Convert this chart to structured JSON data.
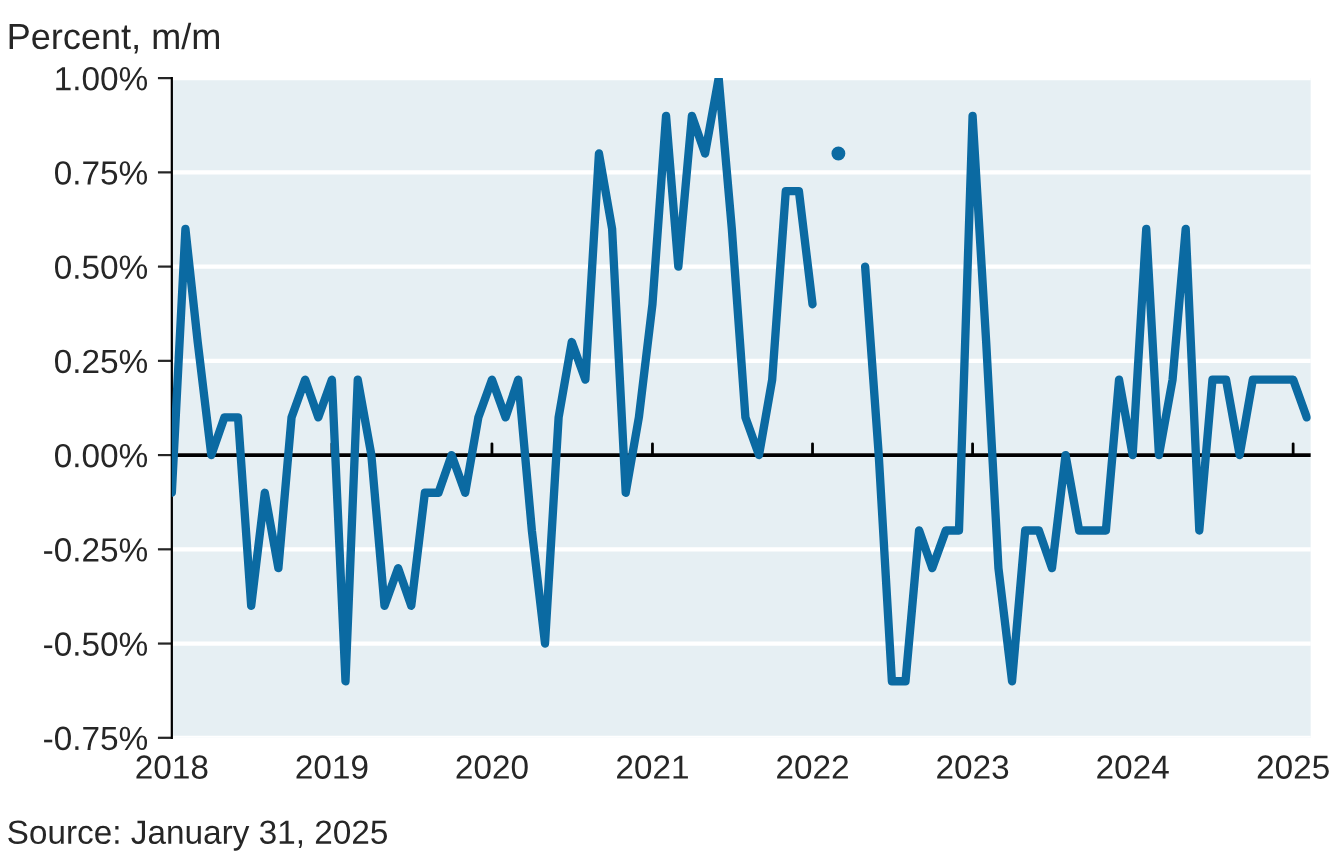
{
  "chart_data": {
    "type": "line",
    "ylabel": "Percent, m/m",
    "annotations": [
      "Source: January 31, 2025"
    ],
    "x": [
      "2018-01",
      "2018-02",
      "2018-03",
      "2018-04",
      "2018-05",
      "2018-06",
      "2018-07",
      "2018-08",
      "2018-09",
      "2018-10",
      "2018-11",
      "2018-12",
      "2019-01",
      "2019-02",
      "2019-03",
      "2019-04",
      "2019-05",
      "2019-06",
      "2019-07",
      "2019-08",
      "2019-09",
      "2019-10",
      "2019-11",
      "2019-12",
      "2020-01",
      "2020-02",
      "2020-03",
      "2020-04",
      "2020-05",
      "2020-06",
      "2020-07",
      "2020-08",
      "2020-09",
      "2020-10",
      "2020-11",
      "2020-12",
      "2021-01",
      "2021-02",
      "2021-03",
      "2021-04",
      "2021-05",
      "2021-06",
      "2021-07",
      "2021-08",
      "2021-09",
      "2021-10",
      "2021-11",
      "2021-12",
      "2022-01",
      "2022-02",
      "2022-03",
      "2022-04",
      "2022-05",
      "2022-06",
      "2022-07",
      "2022-08",
      "2022-09",
      "2022-10",
      "2022-11",
      "2022-12",
      "2023-01",
      "2023-02",
      "2023-03",
      "2023-04",
      "2023-05",
      "2023-06",
      "2023-07",
      "2023-08",
      "2023-09",
      "2023-10",
      "2023-11",
      "2023-12",
      "2024-01",
      "2024-02",
      "2024-03",
      "2024-04",
      "2024-05",
      "2024-06",
      "2024-07",
      "2024-08",
      "2024-09",
      "2024-10",
      "2024-11",
      "2024-12",
      "2025-01",
      "2025-02"
    ],
    "series": [
      {
        "color": "#0b6aa2",
        "values": [
          -0.1,
          0.6,
          0.3,
          0.0,
          0.1,
          0.1,
          -0.4,
          -0.1,
          -0.3,
          0.1,
          0.2,
          0.1,
          0.2,
          -0.6,
          0.2,
          0.0,
          -0.4,
          -0.3,
          -0.4,
          -0.1,
          -0.1,
          0.0,
          -0.1,
          0.1,
          0.2,
          0.1,
          0.2,
          -0.2,
          -0.5,
          0.1,
          0.3,
          0.2,
          0.8,
          0.6,
          -0.1,
          0.1,
          0.4,
          0.9,
          0.5,
          0.9,
          0.8,
          1.0,
          0.6,
          0.1,
          0.0,
          0.2,
          0.7,
          0.7,
          0.4,
          null,
          0.8,
          null,
          0.5,
          0.0,
          -0.6,
          -0.6,
          -0.2,
          -0.3,
          -0.2,
          -0.2,
          0.9,
          0.3,
          -0.3,
          -0.6,
          -0.2,
          -0.2,
          -0.3,
          0.0,
          -0.2,
          -0.2,
          -0.2,
          0.2,
          0.0,
          0.6,
          0.0,
          0.2,
          0.6,
          -0.2,
          0.2,
          0.2,
          0.0,
          0.2,
          0.2,
          0.2,
          0.2,
          0.1
        ]
      }
    ],
    "xlim": [
      "2018-01",
      "2025-02-10"
    ],
    "xticks": [
      {
        "value": "2018",
        "label": "2018"
      },
      {
        "value": "2019",
        "label": "2019"
      },
      {
        "value": "2020",
        "label": "2020"
      },
      {
        "value": "2021",
        "label": "2021"
      },
      {
        "value": "2022",
        "label": "2022"
      },
      {
        "value": "2023",
        "label": "2023"
      },
      {
        "value": "2024",
        "label": "2024"
      },
      {
        "value": "2025",
        "label": "2025"
      }
    ],
    "ylim": [
      -0.75,
      1.0
    ],
    "yticks": [
      {
        "value": -0.75,
        "label": "-0.75%"
      },
      {
        "value": -0.5,
        "label": "-0.50%"
      },
      {
        "value": -0.25,
        "label": "-0.25%"
      },
      {
        "value": 0,
        "label": "0.00%"
      },
      {
        "value": 0.25,
        "label": "0.25%"
      },
      {
        "value": 0.5,
        "label": "0.50%"
      },
      {
        "value": 0.75,
        "label": "0.75%"
      },
      {
        "value": 1.0,
        "label": "1.00%"
      }
    ],
    "ref_lines": [
      {
        "axis": "y",
        "value": 0,
        "color": "#000000"
      }
    ],
    "grid": "y",
    "legend": false,
    "line_style": "solid",
    "marker": "none"
  }
}
